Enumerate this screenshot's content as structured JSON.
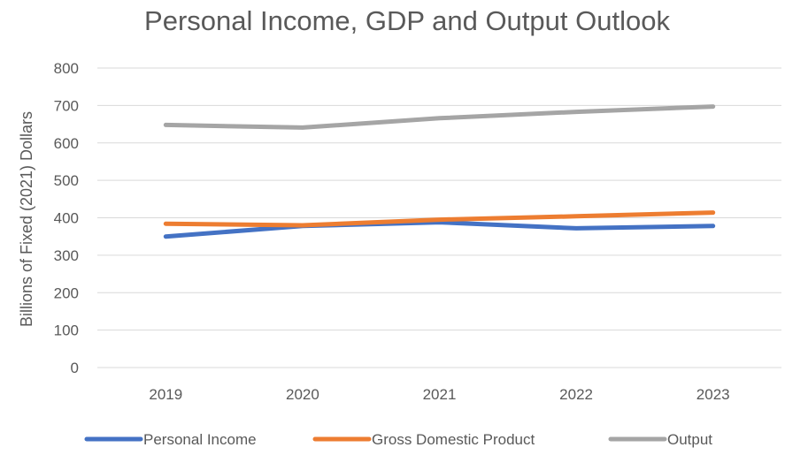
{
  "chart_data": {
    "type": "line",
    "title": "Personal Income, GDP and Output Outlook",
    "xlabel": "",
    "ylabel": "Billions of Fixed (2021) Dollars",
    "categories": [
      "2019",
      "2020",
      "2021",
      "2022",
      "2023"
    ],
    "ylim": [
      0,
      800
    ],
    "yticks": [
      0,
      100,
      200,
      300,
      400,
      500,
      600,
      700,
      800
    ],
    "grid": true,
    "legend_position": "bottom",
    "series": [
      {
        "name": "Personal Income",
        "color": "#4472c4",
        "values": [
          350,
          378,
          388,
          372,
          378
        ]
      },
      {
        "name": "Gross Domestic Product",
        "color": "#ed7d31",
        "values": [
          384,
          380,
          395,
          404,
          414
        ]
      },
      {
        "name": "Output",
        "color": "#a5a5a5",
        "values": [
          648,
          641,
          666,
          683,
          697
        ]
      }
    ]
  }
}
